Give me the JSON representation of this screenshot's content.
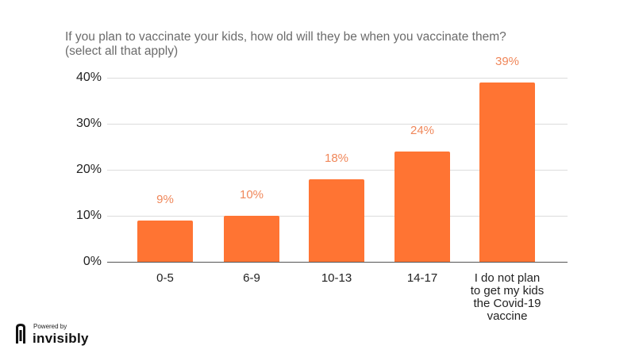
{
  "title": "If you plan to vaccinate your kids, how old will they be when you vaccinate them?\n(select all that apply)",
  "branding": {
    "powered_by": "Powered by",
    "name": "invisibly"
  },
  "colors": {
    "bar": "#ff7433",
    "data_label": "#f0875a",
    "grid": "#dcdcdc"
  },
  "y_ticks": [
    "0%",
    "10%",
    "20%",
    "30%",
    "40%"
  ],
  "chart_data": {
    "type": "bar",
    "title": "If you plan to vaccinate your kids, how old will they be when you vaccinate them? (select all that apply)",
    "categories": [
      "0-5",
      "6-9",
      "10-13",
      "14-17",
      "I do not plan to get my kids the Covid-19 vaccine"
    ],
    "values": [
      9,
      10,
      18,
      24,
      39
    ],
    "data_labels": [
      "9%",
      "10%",
      "18%",
      "24%",
      "39%"
    ],
    "xlabel": "",
    "ylabel": "",
    "ylim": [
      0,
      40
    ],
    "y_tick_labels": [
      "0%",
      "10%",
      "20%",
      "30%",
      "40%"
    ],
    "grid": true,
    "legend": "none"
  },
  "bars": [
    {
      "label": "0-5",
      "value_label": "9%"
    },
    {
      "label": "6-9",
      "value_label": "10%"
    },
    {
      "label": "10-13",
      "value_label": "18%"
    },
    {
      "label": "14-17",
      "value_label": "24%"
    },
    {
      "label": "I do not plan\nto get my kids\nthe Covid-19\nvaccine",
      "value_label": "39%"
    }
  ]
}
